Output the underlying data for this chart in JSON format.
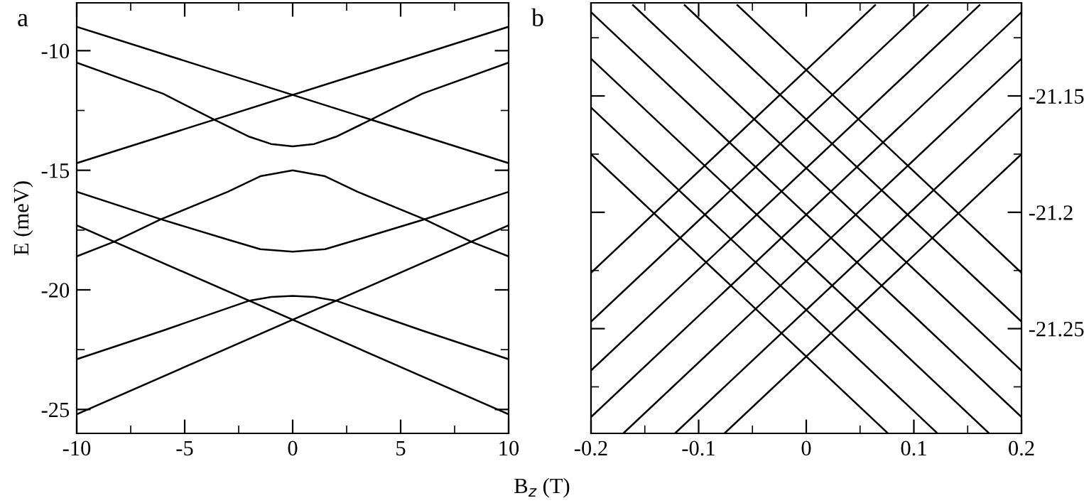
{
  "chart_data": [
    {
      "type": "line",
      "title": "a",
      "xlabel": "B$_{z}$ (T)",
      "ylabel": "E (meV)",
      "xlim": [
        -10,
        10
      ],
      "ylim": [
        -26,
        -8
      ],
      "xticks": [
        -10,
        {
          "value": -7.5,
          "label": null
        },
        -5,
        {
          "value": -2.5,
          "label": null
        },
        0,
        {
          "value": 2.5,
          "label": null
        },
        5,
        {
          "value": 7.5,
          "label": null
        },
        10
      ],
      "yticks": [
        -25,
        {
          "value": -22.5,
          "label": null
        },
        -20,
        {
          "value": -17.5,
          "label": null
        },
        -15,
        {
          "value": -12.5,
          "label": null
        },
        -10
      ],
      "series": [
        {
          "color": "#000000",
          "x": [
            -10,
            10
          ],
          "values": [
            -9.0,
            -14.7
          ]
        },
        {
          "color": "#000000",
          "x": [
            -10,
            10
          ],
          "values": [
            -14.7,
            -9.0
          ]
        },
        {
          "color": "#000000",
          "x": [
            -10,
            -6,
            -3.6,
            -2,
            -1,
            0,
            1,
            2,
            3.6,
            6,
            10
          ],
          "values": [
            -10.5,
            -11.8,
            -12.9,
            -13.6,
            -13.9,
            -14.0,
            -13.9,
            -13.6,
            -12.9,
            -11.8,
            -10.5
          ]
        },
        {
          "color": "#000000",
          "x": [
            -10,
            -8.3,
            -6.1,
            -3,
            -1.5,
            0,
            1.5,
            3,
            6.1,
            8.3,
            10
          ],
          "values": [
            -18.6,
            -18.0,
            -17.05,
            -15.9,
            -15.25,
            -15.0,
            -15.25,
            -15.9,
            -17.05,
            -18.0,
            -18.6
          ]
        },
        {
          "color": "#000000",
          "x": [
            -10,
            -6.1,
            -3,
            -1.5,
            0,
            1.5,
            3,
            6.1,
            10
          ],
          "values": [
            -15.9,
            -17.05,
            -17.9,
            -18.3,
            -18.4,
            -18.3,
            -17.9,
            -17.05,
            -15.9
          ]
        },
        {
          "color": "#000000",
          "x": [
            -10,
            10
          ],
          "values": [
            -17.3,
            -25.2
          ]
        },
        {
          "color": "#000000",
          "x": [
            -10,
            10
          ],
          "values": [
            -25.2,
            -17.3
          ]
        },
        {
          "color": "#000000",
          "x": [
            -10,
            -6,
            -2,
            -1,
            0,
            1,
            2,
            6,
            10
          ],
          "values": [
            -22.9,
            -21.7,
            -20.45,
            -20.3,
            -20.25,
            -20.3,
            -20.45,
            -21.7,
            -22.9
          ]
        }
      ]
    },
    {
      "type": "line",
      "title": "b",
      "xlim": [
        -0.2,
        0.2
      ],
      "y2lim": [
        -21.295,
        -21.11
      ],
      "xticks": [
        -0.2,
        {
          "value": -0.15,
          "label": null
        },
        -0.1,
        {
          "value": -0.05,
          "label": null
        },
        0,
        {
          "value": 0.05,
          "label": null
        },
        0.1,
        {
          "value": 0.15,
          "label": null
        },
        0.2
      ],
      "y2ticks": [
        {
          "value": -21.275,
          "label": null
        },
        -21.25,
        {
          "value": -21.225,
          "label": null
        },
        -21.2,
        {
          "value": -21.175,
          "label": null
        },
        -21.15,
        {
          "value": -21.125,
          "label": null
        }
      ],
      "series": [
        {
          "color": "#000000",
          "axis": "y2",
          "x": [
            -0.064,
            0.2
          ],
          "values": [
            -21.111,
            -21.226
          ]
        },
        {
          "color": "#000000",
          "axis": "y2",
          "x": [
            -0.113,
            0.2
          ],
          "values": [
            -21.111,
            -21.247
          ]
        },
        {
          "color": "#000000",
          "axis": "y2",
          "x": [
            -0.161,
            0.2
          ],
          "values": [
            -21.111,
            -21.268
          ]
        },
        {
          "color": "#000000",
          "axis": "y2",
          "x": [
            -0.2,
            0.2
          ],
          "values": [
            -21.114,
            -21.288
          ]
        },
        {
          "color": "#000000",
          "axis": "y2",
          "x": [
            -0.2,
            0.17
          ],
          "values": [
            -21.134,
            -21.295
          ]
        },
        {
          "color": "#000000",
          "axis": "y2",
          "x": [
            -0.2,
            0.122
          ],
          "values": [
            -21.155,
            -21.295
          ]
        },
        {
          "color": "#000000",
          "axis": "y2",
          "x": [
            -0.2,
            0.076
          ],
          "values": [
            -21.175,
            -21.295
          ]
        },
        {
          "color": "#000000",
          "axis": "y2",
          "x": [
            -0.2,
            0.064
          ],
          "values": [
            -21.226,
            -21.111
          ]
        },
        {
          "color": "#000000",
          "axis": "y2",
          "x": [
            -0.2,
            0.113
          ],
          "values": [
            -21.247,
            -21.111
          ]
        },
        {
          "color": "#000000",
          "axis": "y2",
          "x": [
            -0.2,
            0.161
          ],
          "values": [
            -21.268,
            -21.111
          ]
        },
        {
          "color": "#000000",
          "axis": "y2",
          "x": [
            -0.2,
            0.2
          ],
          "values": [
            -21.288,
            -21.114
          ]
        },
        {
          "color": "#000000",
          "axis": "y2",
          "x": [
            -0.17,
            0.2
          ],
          "values": [
            -21.295,
            -21.134
          ]
        },
        {
          "color": "#000000",
          "axis": "y2",
          "x": [
            -0.122,
            0.2
          ],
          "values": [
            -21.295,
            -21.155
          ]
        },
        {
          "color": "#000000",
          "axis": "y2",
          "x": [
            -0.076,
            0.2
          ],
          "values": [
            -21.295,
            -21.175
          ]
        }
      ]
    }
  ]
}
